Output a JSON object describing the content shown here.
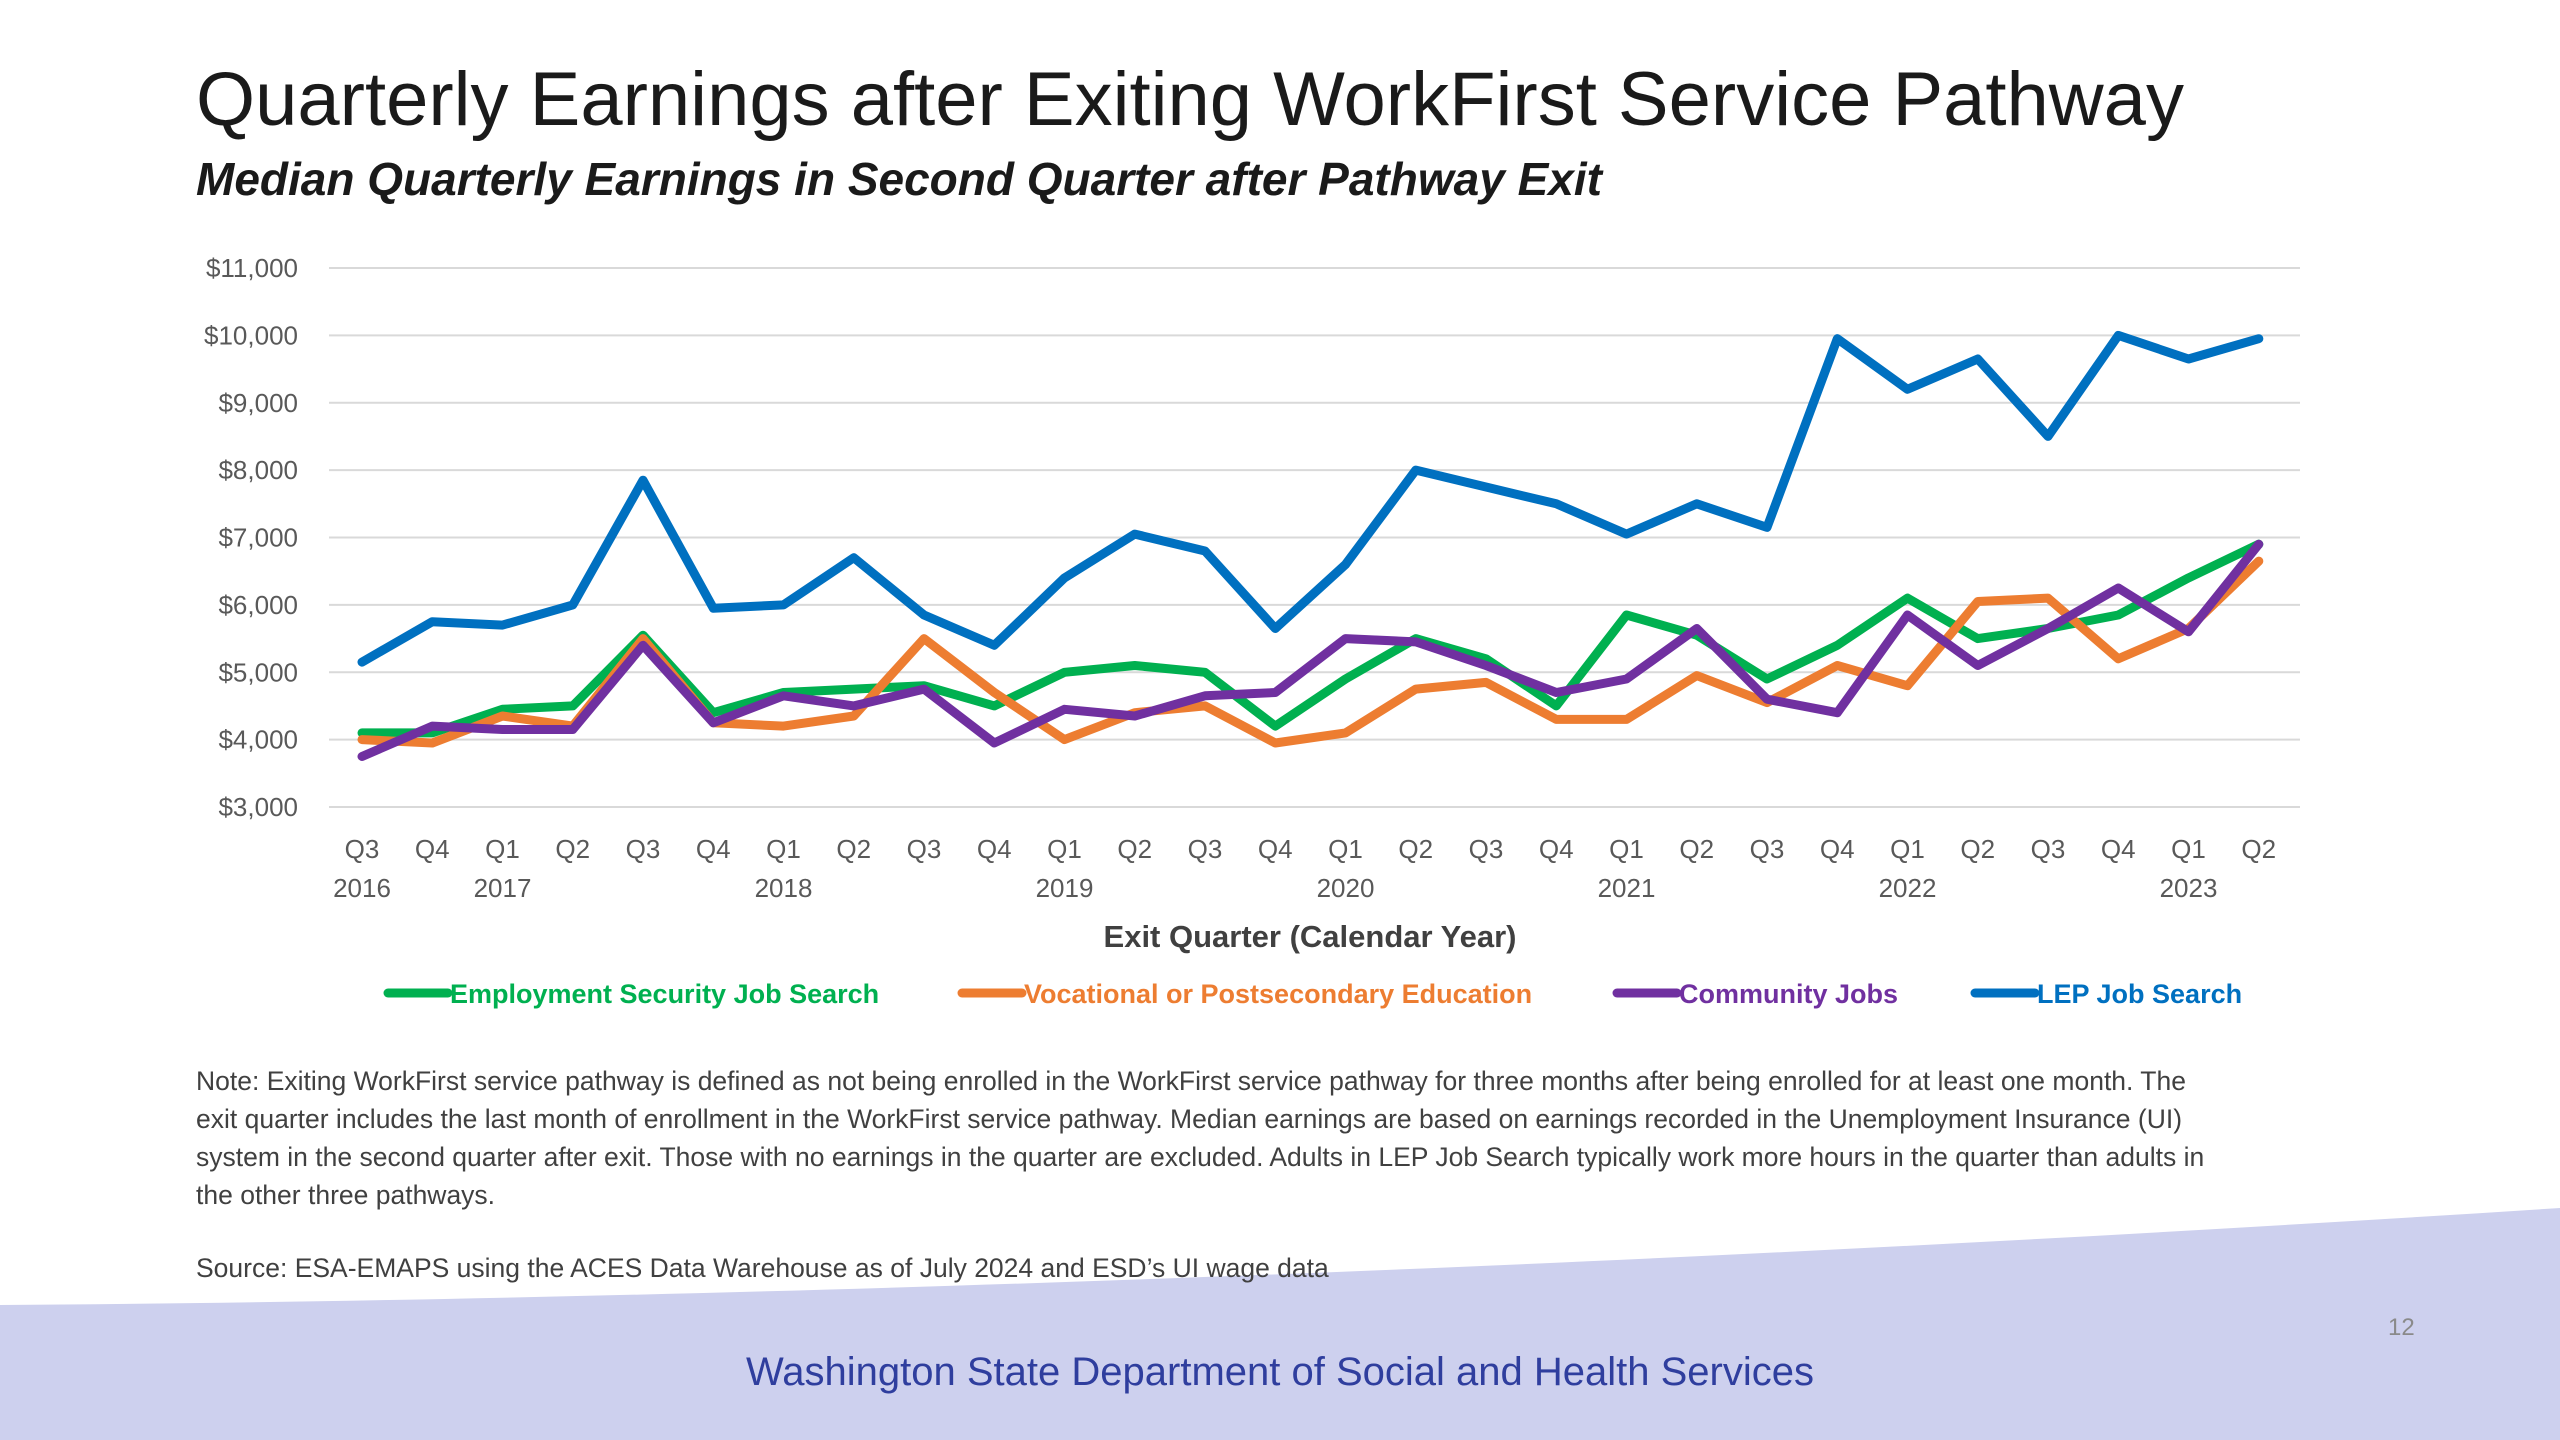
{
  "slide": {
    "title": "Quarterly Earnings after Exiting WorkFirst Service Pathway",
    "subtitle": "Median Quarterly Earnings in Second Quarter after Pathway Exit",
    "note": "Note: Exiting WorkFirst service pathway is defined as not being enrolled in the WorkFirst service pathway for three months after being enrolled for at least one month. The exit quarter includes the last month of enrollment in the WorkFirst service pathway. Median earnings are based on earnings recorded in the Unemployment Insurance (UI) system in the second quarter after exit. Those with no earnings in the quarter are excluded. Adults in LEP Job Search typically work more hours in the quarter than adults in the other three pathways.",
    "source": "Source: ESA-EMAPS using the ACES Data Warehouse as of July 2024 and ESD’s UI wage data",
    "footer": "Washington State Department of Social and Health Services",
    "page_number": "12",
    "footer_color": "#cdd0ee"
  },
  "chart_data": {
    "type": "line",
    "title": "",
    "xlabel": "Exit Quarter (Calendar Year)",
    "ylabel": "",
    "ylim": [
      3000,
      11000
    ],
    "yticks": [
      3000,
      4000,
      5000,
      6000,
      7000,
      8000,
      9000,
      10000,
      11000
    ],
    "ytick_labels": [
      "$3,000",
      "$4,000",
      "$5,000",
      "$6,000",
      "$7,000",
      "$8,000",
      "$9,000",
      "$10,000",
      "$11,000"
    ],
    "grid": true,
    "legend_position": "bottom",
    "categories": [
      "Q3",
      "Q4",
      "Q1",
      "Q2",
      "Q3",
      "Q4",
      "Q1",
      "Q2",
      "Q3",
      "Q4",
      "Q1",
      "Q2",
      "Q3",
      "Q4",
      "Q1",
      "Q2",
      "Q3",
      "Q4",
      "Q1",
      "Q2",
      "Q3",
      "Q4",
      "Q1",
      "Q2",
      "Q3",
      "Q4",
      "Q1",
      "Q2"
    ],
    "year_labels": [
      {
        "index": 0,
        "label": "2016"
      },
      {
        "index": 2,
        "label": "2017"
      },
      {
        "index": 6,
        "label": "2018"
      },
      {
        "index": 10,
        "label": "2019"
      },
      {
        "index": 14,
        "label": "2020"
      },
      {
        "index": 18,
        "label": "2021"
      },
      {
        "index": 22,
        "label": "2022"
      },
      {
        "index": 26,
        "label": "2023"
      }
    ],
    "series": [
      {
        "name": "Employment Security Job Search",
        "color": "#00b050",
        "values": [
          4100,
          4100,
          4450,
          4500,
          5550,
          4400,
          4700,
          4750,
          4800,
          4500,
          5000,
          5100,
          5000,
          4200,
          4900,
          5500,
          5200,
          4500,
          5850,
          5550,
          4900,
          5400,
          6100,
          5500,
          5650,
          5850,
          6400,
          6900
        ]
      },
      {
        "name": "Vocational or Postsecondary Education",
        "color": "#ed7d31",
        "values": [
          4000,
          3950,
          4350,
          4200,
          5500,
          4250,
          4200,
          4350,
          5500,
          4700,
          4000,
          4400,
          4500,
          3950,
          4100,
          4750,
          4850,
          4300,
          4300,
          4950,
          4550,
          5100,
          4800,
          6050,
          6100,
          5200,
          5650,
          6650
        ]
      },
      {
        "name": "Community Jobs",
        "color": "#7030a0",
        "values": [
          3750,
          4200,
          4150,
          4150,
          5400,
          4250,
          4650,
          4500,
          4750,
          3950,
          4450,
          4350,
          4650,
          4700,
          5500,
          5450,
          5100,
          4700,
          4900,
          5650,
          4600,
          4400,
          5850,
          5100,
          5650,
          6250,
          5600,
          6900
        ]
      },
      {
        "name": "LEP Job Search",
        "color": "#0070c0",
        "values": [
          5150,
          5750,
          5700,
          6000,
          7850,
          5950,
          6000,
          6700,
          5850,
          5400,
          6400,
          7050,
          6800,
          5650,
          6600,
          8000,
          7750,
          7500,
          7050,
          7500,
          7150,
          9950,
          9200,
          9650,
          8500,
          10000,
          9650,
          9950
        ]
      }
    ]
  }
}
